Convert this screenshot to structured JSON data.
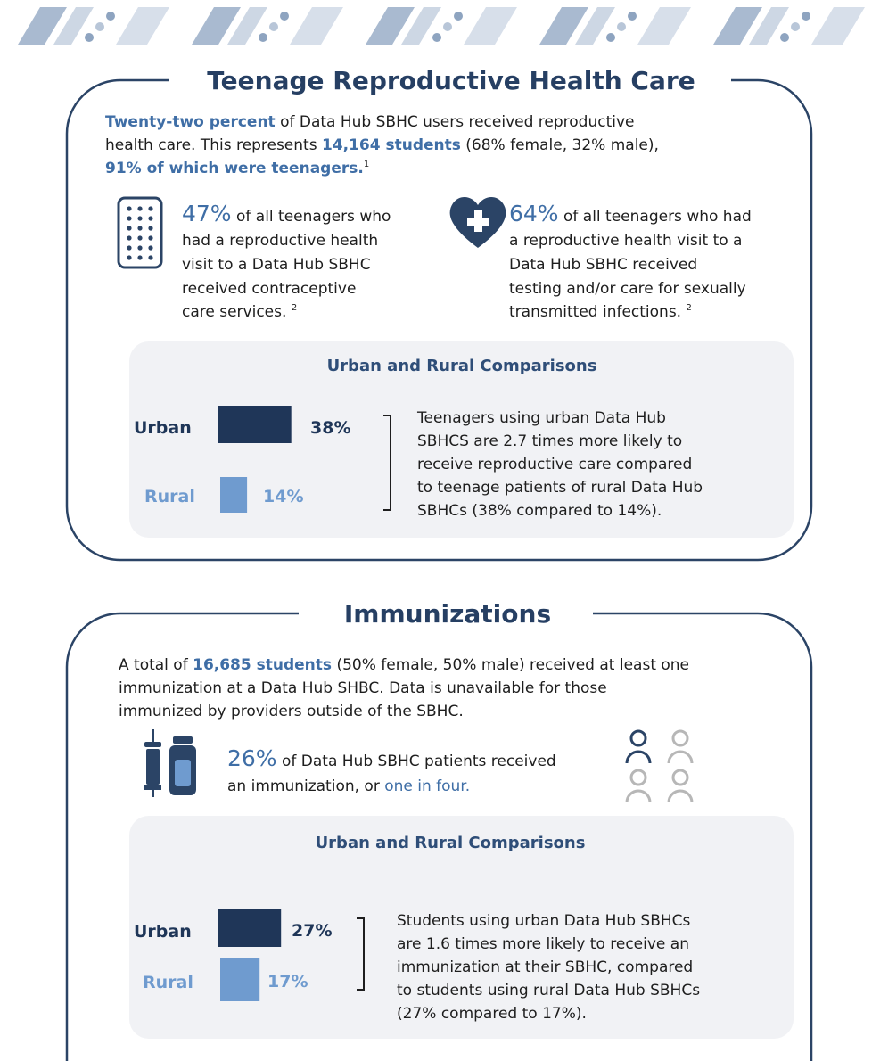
{
  "sections": [
    {
      "title": "Teenage Reproductive Health Care",
      "intro": [
        [
          "Twenty-two percent",
          "of Data Hub SBHC users received reproductive"
        ],
        [
          "health care. This represents",
          "14,164 students",
          "(68% female, 32% male),"
        ],
        [
          "91% of which were teenagers.",
          "1"
        ]
      ],
      "stats": [
        {
          "value_label": "47%",
          "lines": [
            "of all teenagers who",
            "had a reproductive health",
            "visit to a Data Hub SBHC",
            "received contraceptive",
            "care services."
          ],
          "note": "2"
        },
        {
          "value_label": "64%",
          "lines": [
            "of all teenagers who had",
            "a reproductive health visit to a",
            "Data Hub SBHC received",
            "testing and/or care for sexually",
            "transmitted infections."
          ],
          "note": "2"
        }
      ],
      "comparison": {
        "type": "bar",
        "title": "Urban and Rural Comparisons",
        "categories": [
          "Urban",
          "Rural"
        ],
        "values": [
          38,
          14
        ],
        "value_labels": [
          "38%",
          "14%"
        ],
        "colors": [
          "#1f3658",
          "#6f9bcf"
        ],
        "description": [
          "Teenagers using urban Data Hub",
          "SBHCS are 2.7 times more likely to",
          "receive reproductive care compared",
          "to teenage patients of rural Data Hub",
          "SBHCs (38% compared to 14%)."
        ]
      }
    },
    {
      "title": "Immunizations",
      "intro": [
        [
          "A total of",
          "16,685 students",
          "(50% female, 50% male) received at least one"
        ],
        [
          "immunization at a Data Hub SHBC. Data is unavailable for those"
        ],
        [
          "immunized by providers outside of the SBHC."
        ]
      ],
      "stats": [
        {
          "value_label": "26%",
          "lines": [
            "of Data Hub SBHC patients received",
            "an immunization, or",
            "one in four."
          ]
        }
      ],
      "comparison": {
        "type": "bar",
        "title": "Urban and Rural Comparisons",
        "categories": [
          "Urban",
          "Rural"
        ],
        "values": [
          27,
          17
        ],
        "value_labels": [
          "27%",
          "17%"
        ],
        "colors": [
          "#1f3658",
          "#6f9bcf"
        ],
        "description": [
          "Students using urban Data Hub SBHCs",
          "are 1.6 times more likely to receive an",
          "immunization at their SBHC, compared",
          "to students using rural Data Hub SBHCs",
          "(27% compared to 17%)."
        ]
      }
    }
  ]
}
